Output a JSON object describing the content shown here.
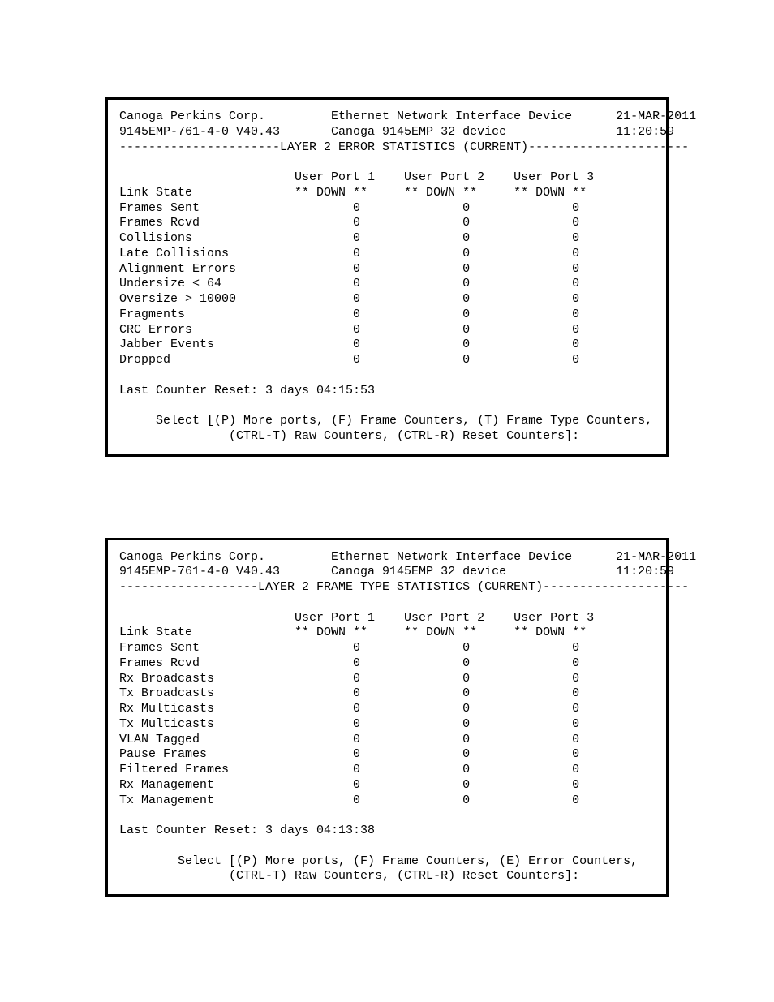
{
  "box1": {
    "header": {
      "company": "Canoga Perkins Corp.",
      "device_type": "Ethernet Network Interface Device",
      "date": "21-MAR-2011",
      "model": "9145EMP-761-4-0 V40.43",
      "device_name": "Canoga 9145EMP 32 device",
      "time": "11:20:59",
      "section_title": "LAYER 2 ERROR STATISTICS (CURRENT)"
    },
    "columns": [
      "User Port 1",
      "User Port 2",
      "User Port 3"
    ],
    "link_state": [
      "** DOWN **",
      "** DOWN **",
      "** DOWN **"
    ],
    "rows": [
      {
        "label": "Frames Sent",
        "values": [
          "0",
          "0",
          "0"
        ]
      },
      {
        "label": "Frames Rcvd",
        "values": [
          "0",
          "0",
          "0"
        ]
      },
      {
        "label": "Collisions",
        "values": [
          "0",
          "0",
          "0"
        ]
      },
      {
        "label": "Late Collisions",
        "values": [
          "0",
          "0",
          "0"
        ]
      },
      {
        "label": "Alignment Errors",
        "values": [
          "0",
          "0",
          "0"
        ]
      },
      {
        "label": "Undersize < 64",
        "values": [
          "0",
          "0",
          "0"
        ]
      },
      {
        "label": "Oversize > 10000",
        "values": [
          "0",
          "0",
          "0"
        ]
      },
      {
        "label": "Fragments",
        "values": [
          "0",
          "0",
          "0"
        ]
      },
      {
        "label": "CRC Errors",
        "values": [
          "0",
          "0",
          "0"
        ]
      },
      {
        "label": "Jabber Events",
        "values": [
          "0",
          "0",
          "0"
        ]
      },
      {
        "label": "Dropped",
        "values": [
          "0",
          "0",
          "0"
        ]
      }
    ],
    "reset_info": "Last Counter Reset: 3 days 04:15:53",
    "footer_line1": "Select [(P) More ports, (F) Frame Counters, (T) Frame Type Counters,",
    "footer_line2": "(CTRL-T) Raw Counters, (CTRL-R) Reset Counters]:"
  },
  "box2": {
    "header": {
      "company": "Canoga Perkins Corp.",
      "device_type": "Ethernet Network Interface Device",
      "date": "21-MAR-2011",
      "model": "9145EMP-761-4-0 V40.43",
      "device_name": "Canoga 9145EMP 32 device",
      "time": "11:20:59",
      "section_title": "LAYER 2 FRAME TYPE STATISTICS (CURRENT)"
    },
    "columns": [
      "User Port 1",
      "User Port 2",
      "User Port 3"
    ],
    "link_state": [
      "** DOWN **",
      "** DOWN **",
      "** DOWN **"
    ],
    "rows": [
      {
        "label": "Frames Sent",
        "values": [
          "0",
          "0",
          "0"
        ]
      },
      {
        "label": "Frames Rcvd",
        "values": [
          "0",
          "0",
          "0"
        ]
      },
      {
        "label": "Rx Broadcasts",
        "values": [
          "0",
          "0",
          "0"
        ]
      },
      {
        "label": "Tx Broadcasts",
        "values": [
          "0",
          "0",
          "0"
        ]
      },
      {
        "label": "Rx Multicasts",
        "values": [
          "0",
          "0",
          "0"
        ]
      },
      {
        "label": "Tx Multicasts",
        "values": [
          "0",
          "0",
          "0"
        ]
      },
      {
        "label": "VLAN Tagged",
        "values": [
          "0",
          "0",
          "0"
        ]
      },
      {
        "label": "Pause Frames",
        "values": [
          "0",
          "0",
          "0"
        ]
      },
      {
        "label": "Filtered Frames",
        "values": [
          "0",
          "0",
          "0"
        ]
      },
      {
        "label": "Rx Management",
        "values": [
          "0",
          "0",
          "0"
        ]
      },
      {
        "label": "Tx Management",
        "values": [
          "0",
          "0",
          "0"
        ]
      }
    ],
    "reset_info": "Last Counter Reset: 3 days 04:13:38",
    "footer_line1": "Select [(P) More ports, (F) Frame Counters, (E) Error Counters,",
    "footer_line2": "(CTRL-T) Raw Counters, (CTRL-R) Reset Counters]:"
  }
}
